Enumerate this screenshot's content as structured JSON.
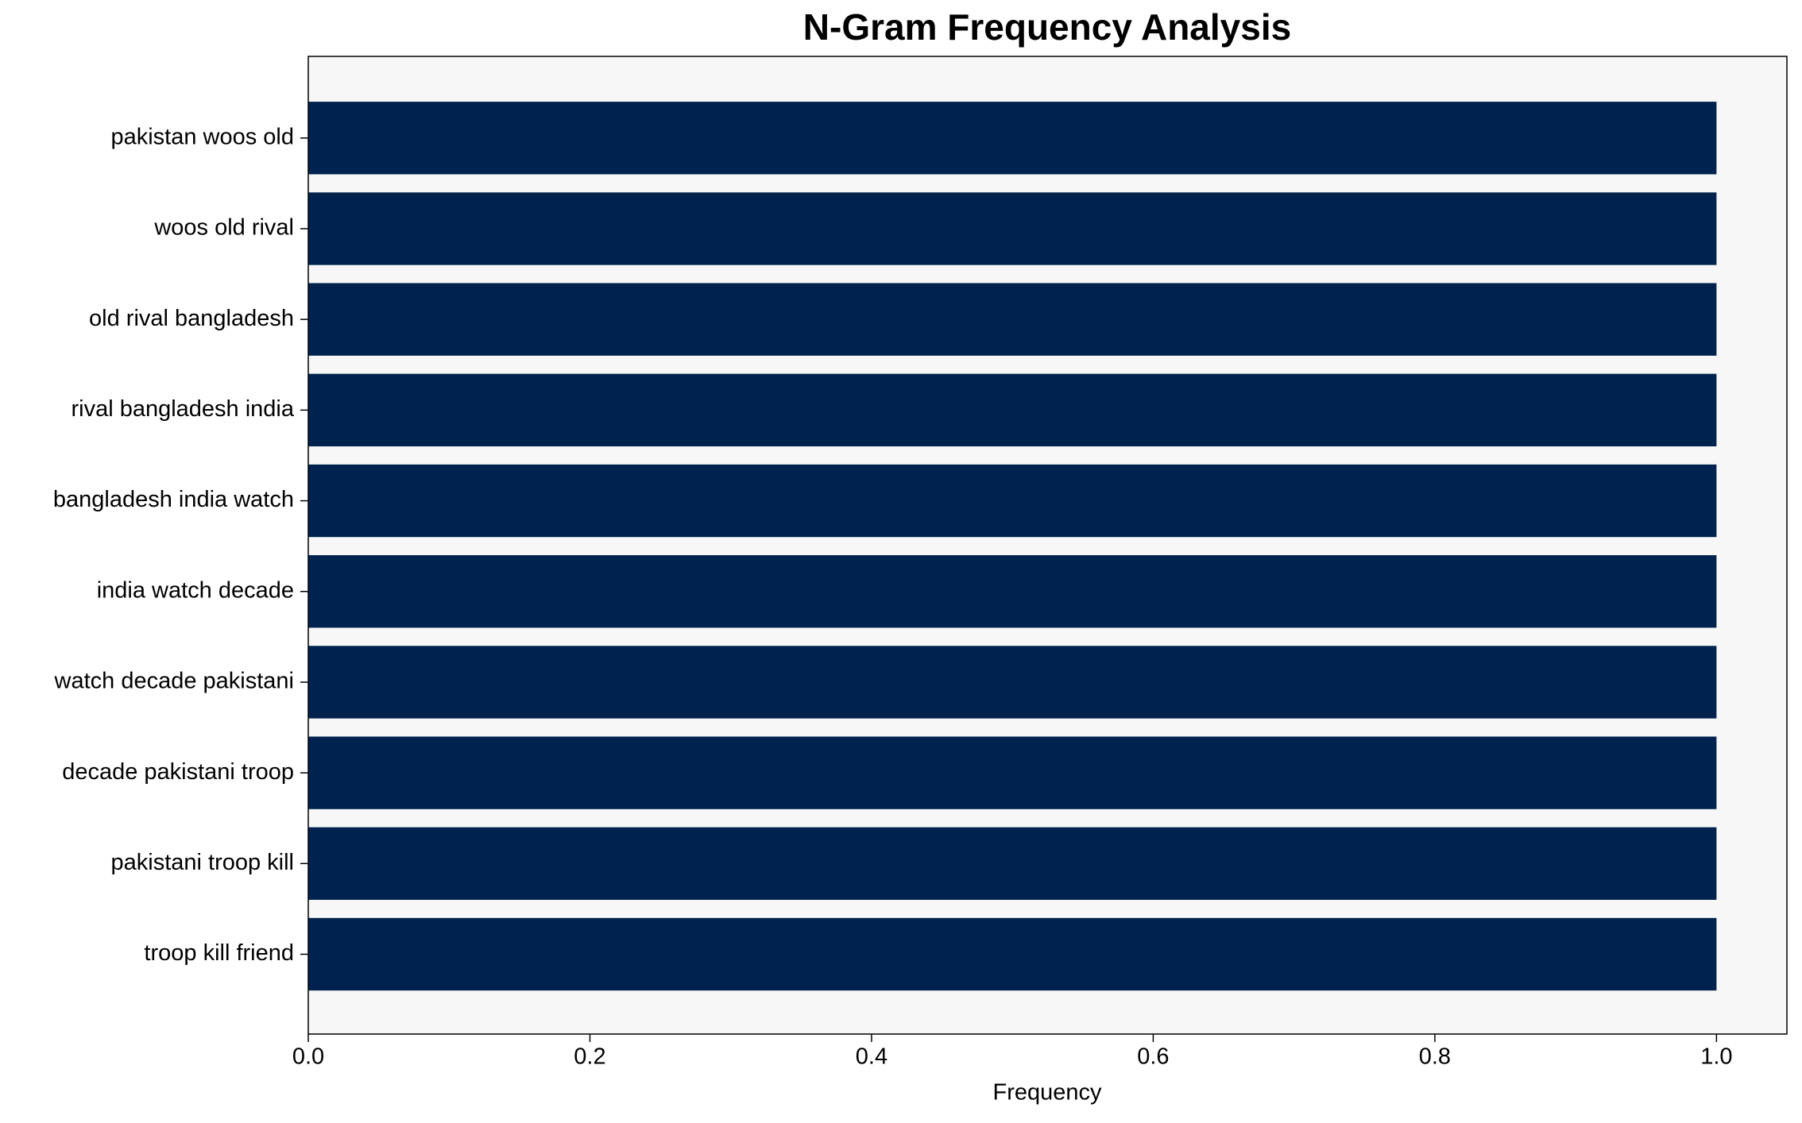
{
  "chart_data": {
    "type": "bar",
    "orientation": "horizontal",
    "title": "N-Gram Frequency Analysis",
    "x_label": "Frequency",
    "categories": [
      "pakistan woos old",
      "woos old rival",
      "old rival bangladesh",
      "rival bangladesh india",
      "bangladesh india watch",
      "india watch decade",
      "watch decade pakistani",
      "decade pakistani troop",
      "pakistani troop kill",
      "troop kill friend"
    ],
    "values": [
      1,
      1,
      1,
      1,
      1,
      1,
      1,
      1,
      1,
      1
    ],
    "color": "#00224e",
    "xlim": [
      0,
      1.05
    ],
    "xticks": [
      {
        "value": 0,
        "label": "0.0"
      },
      0.2,
      0.4,
      0.6,
      0.8,
      {
        "value": 1,
        "label": "1.0"
      }
    ],
    "grid": false
  }
}
